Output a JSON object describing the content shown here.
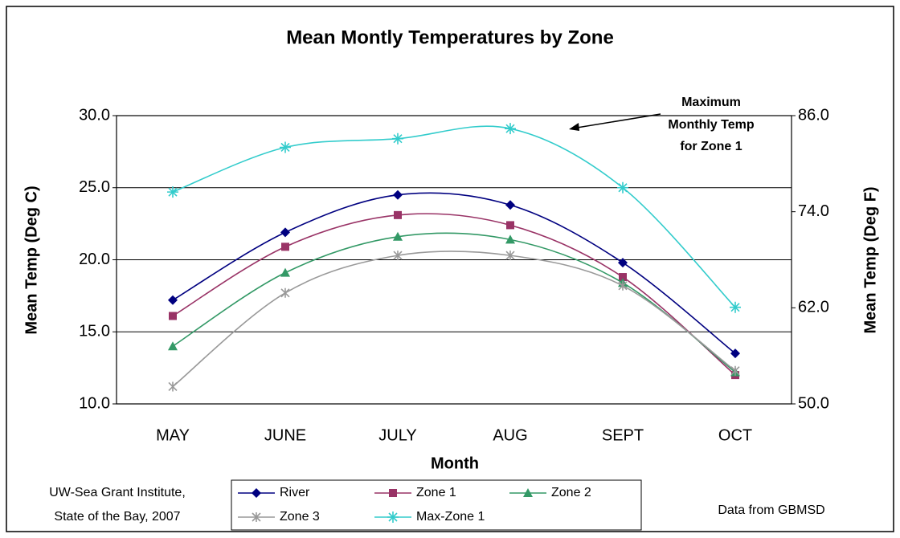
{
  "chart_data": {
    "type": "line",
    "title": "Mean Montly Temperatures by Zone",
    "x_label": "Month",
    "y_label": "Mean Temp (Deg C)",
    "y2_label": "Mean Temp (Deg F)",
    "annotation": [
      "Maximum",
      "Monthly Temp",
      "for Zone 1"
    ],
    "footnote_left": [
      "UW-Sea Grant Institute,",
      "State of the Bay, 2007"
    ],
    "footnote_right": "Data from GBMSD",
    "categories": [
      "MAY",
      "JUNE",
      "JULY",
      "AUG",
      "SEPT",
      "OCT"
    ],
    "ylim": [
      10,
      30
    ],
    "yticks": [
      {
        "value": 10,
        "label": "10.0"
      },
      {
        "value": 15,
        "label": "15.0"
      },
      {
        "value": 20,
        "label": "20.0"
      },
      {
        "value": 25,
        "label": "25.0"
      },
      {
        "value": 30,
        "label": "30.0"
      }
    ],
    "y2lim": [
      50,
      86
    ],
    "y2ticks": [
      {
        "value": 50,
        "label": "50.0"
      },
      {
        "value": 62,
        "label": "62.0"
      },
      {
        "value": 74,
        "label": "74.0"
      },
      {
        "value": 86,
        "label": "86.0"
      }
    ],
    "grid": true,
    "smooth": true,
    "series": [
      {
        "name": "River",
        "color": "#000080",
        "marker": "diamond",
        "values": [
          17.2,
          21.9,
          24.5,
          23.8,
          19.8,
          13.5
        ]
      },
      {
        "name": "Zone 1",
        "color": "#993366",
        "marker": "square",
        "values": [
          16.1,
          20.9,
          23.1,
          22.4,
          18.8,
          12.0
        ]
      },
      {
        "name": "Zone 2",
        "color": "#339966",
        "marker": "triangle",
        "values": [
          14.0,
          19.1,
          21.6,
          21.4,
          18.4,
          12.2
        ]
      },
      {
        "name": "Zone 3",
        "color": "#999999",
        "marker": "star",
        "values": [
          11.2,
          17.7,
          20.3,
          20.3,
          18.2,
          12.3
        ]
      },
      {
        "name": "Max-Zone 1",
        "color": "#33CCCC",
        "marker": "asterisk",
        "values": [
          24.7,
          27.8,
          28.4,
          29.1,
          25.0,
          16.7
        ]
      }
    ]
  }
}
